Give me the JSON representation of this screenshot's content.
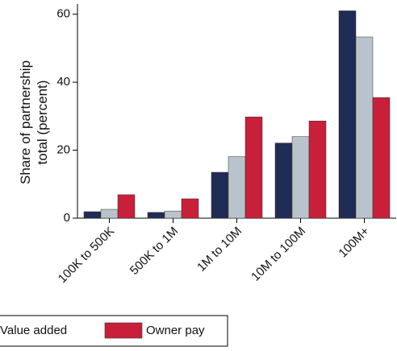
{
  "chart_data": {
    "type": "bar",
    "y_label_lines": [
      "Share of partnership",
      "total (percent)"
    ],
    "categories": [
      "100K to 500K",
      "500K to 1M",
      "1M to 10M",
      "10M to 100M",
      "100M+"
    ],
    "series": [
      {
        "color": "#1f2d55",
        "values": [
          1.9,
          1.7,
          13.5,
          22.1,
          61
        ]
      },
      {
        "name": "Value added",
        "color": "#b9c3cc",
        "values": [
          2.6,
          2.1,
          18.1,
          24,
          53.3
        ]
      },
      {
        "name": "Owner pay",
        "color": "#c8203a",
        "values": [
          6.9,
          5.7,
          29.8,
          28.6,
          35.5
        ]
      }
    ],
    "ylim": [
      0,
      63
    ],
    "yticks": [
      0,
      20,
      40,
      60
    ]
  }
}
